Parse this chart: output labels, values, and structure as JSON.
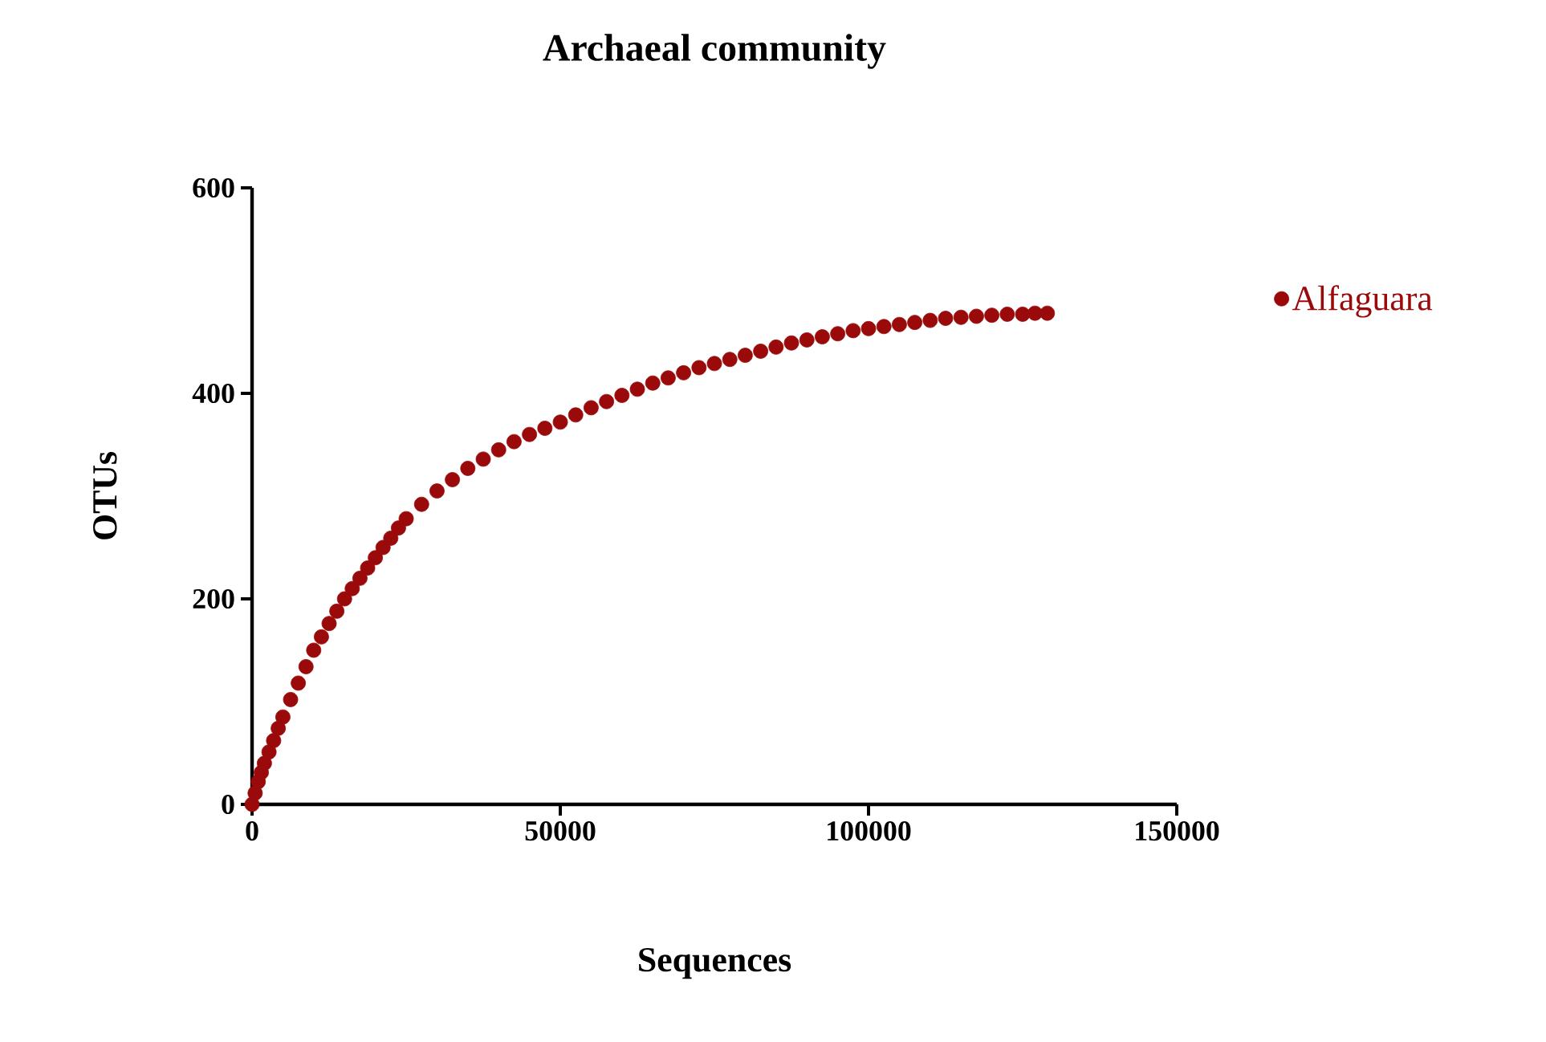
{
  "chart_data": {
    "type": "scatter",
    "title": "Archaeal community",
    "xlabel": "Sequences",
    "ylabel": "OTUs",
    "xlim": [
      0,
      150000
    ],
    "ylim": [
      0,
      600
    ],
    "xticks": [
      0,
      50000,
      100000,
      150000
    ],
    "yticks": [
      0,
      200,
      400,
      600
    ],
    "legend": "right",
    "marker": "circle",
    "grid": false,
    "series": [
      {
        "name": "Alfaguara",
        "color": "#9b0a0a",
        "x": [
          0,
          500,
          1000,
          1500,
          2000,
          2750,
          3500,
          4250,
          5000,
          6250,
          7500,
          8750,
          10000,
          11250,
          12500,
          13750,
          15000,
          16250,
          17500,
          18750,
          20000,
          21250,
          22500,
          23750,
          25000,
          27500,
          30000,
          32500,
          35000,
          37500,
          40000,
          42500,
          45000,
          47500,
          50000,
          52500,
          55000,
          57500,
          60000,
          62500,
          65000,
          67500,
          70000,
          72500,
          75000,
          77500,
          80000,
          82500,
          85000,
          87500,
          90000,
          92500,
          95000,
          97500,
          100000,
          102500,
          105000,
          107500,
          110000,
          112500,
          115000,
          117500,
          120000,
          122500,
          125000,
          127000,
          129000
        ],
        "values": [
          0,
          11,
          22,
          31,
          40,
          51,
          62,
          74,
          85,
          102,
          118,
          134,
          150,
          163,
          176,
          188,
          200,
          210,
          220,
          230,
          240,
          250,
          259,
          269,
          278,
          292,
          305,
          316,
          327,
          336,
          345,
          353,
          360,
          366,
          372,
          379,
          386,
          392,
          398,
          404,
          410,
          415,
          420,
          425,
          429,
          433,
          437,
          441,
          445,
          449,
          452,
          455,
          458,
          461,
          463,
          465,
          467,
          469,
          471,
          473,
          474,
          475,
          476,
          477,
          477,
          478,
          478
        ]
      }
    ]
  }
}
